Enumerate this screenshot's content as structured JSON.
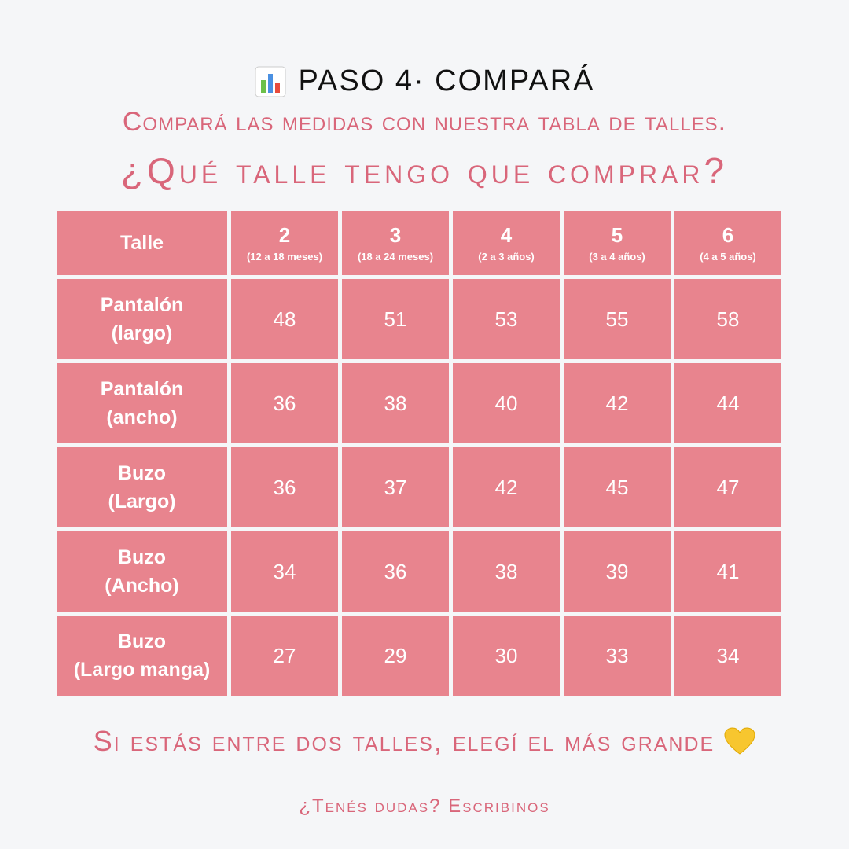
{
  "header": {
    "title": "PASO 4· COMPARÁ",
    "subtitle": "Compará las medidas con nuestra tabla de talles.",
    "question": "¿Qué talle tengo que comprar?"
  },
  "table": {
    "header": {
      "label": "Talle",
      "columns": [
        {
          "size": 2,
          "range": "(12 a 18 meses)"
        },
        {
          "size": 3,
          "range": "(18 a 24 meses)"
        },
        {
          "size": 4,
          "range": "(2 a 3 años)"
        },
        {
          "size": 5,
          "range": "(3 a 4 años)"
        },
        {
          "size": 6,
          "range": "(4 a 5 años)"
        }
      ]
    },
    "rows": [
      {
        "label": [
          "Pantalón",
          "(largo)"
        ],
        "values": [
          48,
          51,
          53,
          55,
          58
        ]
      },
      {
        "label": [
          "Pantalón",
          "(ancho)"
        ],
        "values": [
          36,
          38,
          40,
          42,
          44
        ]
      },
      {
        "label": [
          "Buzo",
          "(Largo)"
        ],
        "values": [
          36,
          37,
          42,
          45,
          47
        ]
      },
      {
        "label": [
          "Buzo",
          "(Ancho)"
        ],
        "values": [
          34,
          36,
          38,
          39,
          41
        ]
      },
      {
        "label": [
          "Buzo",
          "(Largo manga)"
        ],
        "values": [
          27,
          29,
          30,
          33,
          34
        ]
      }
    ]
  },
  "footer": {
    "tip": "Si estás entre dos talles, elegí el más grande",
    "contact": "¿Tenés dudas? Escribinos"
  }
}
